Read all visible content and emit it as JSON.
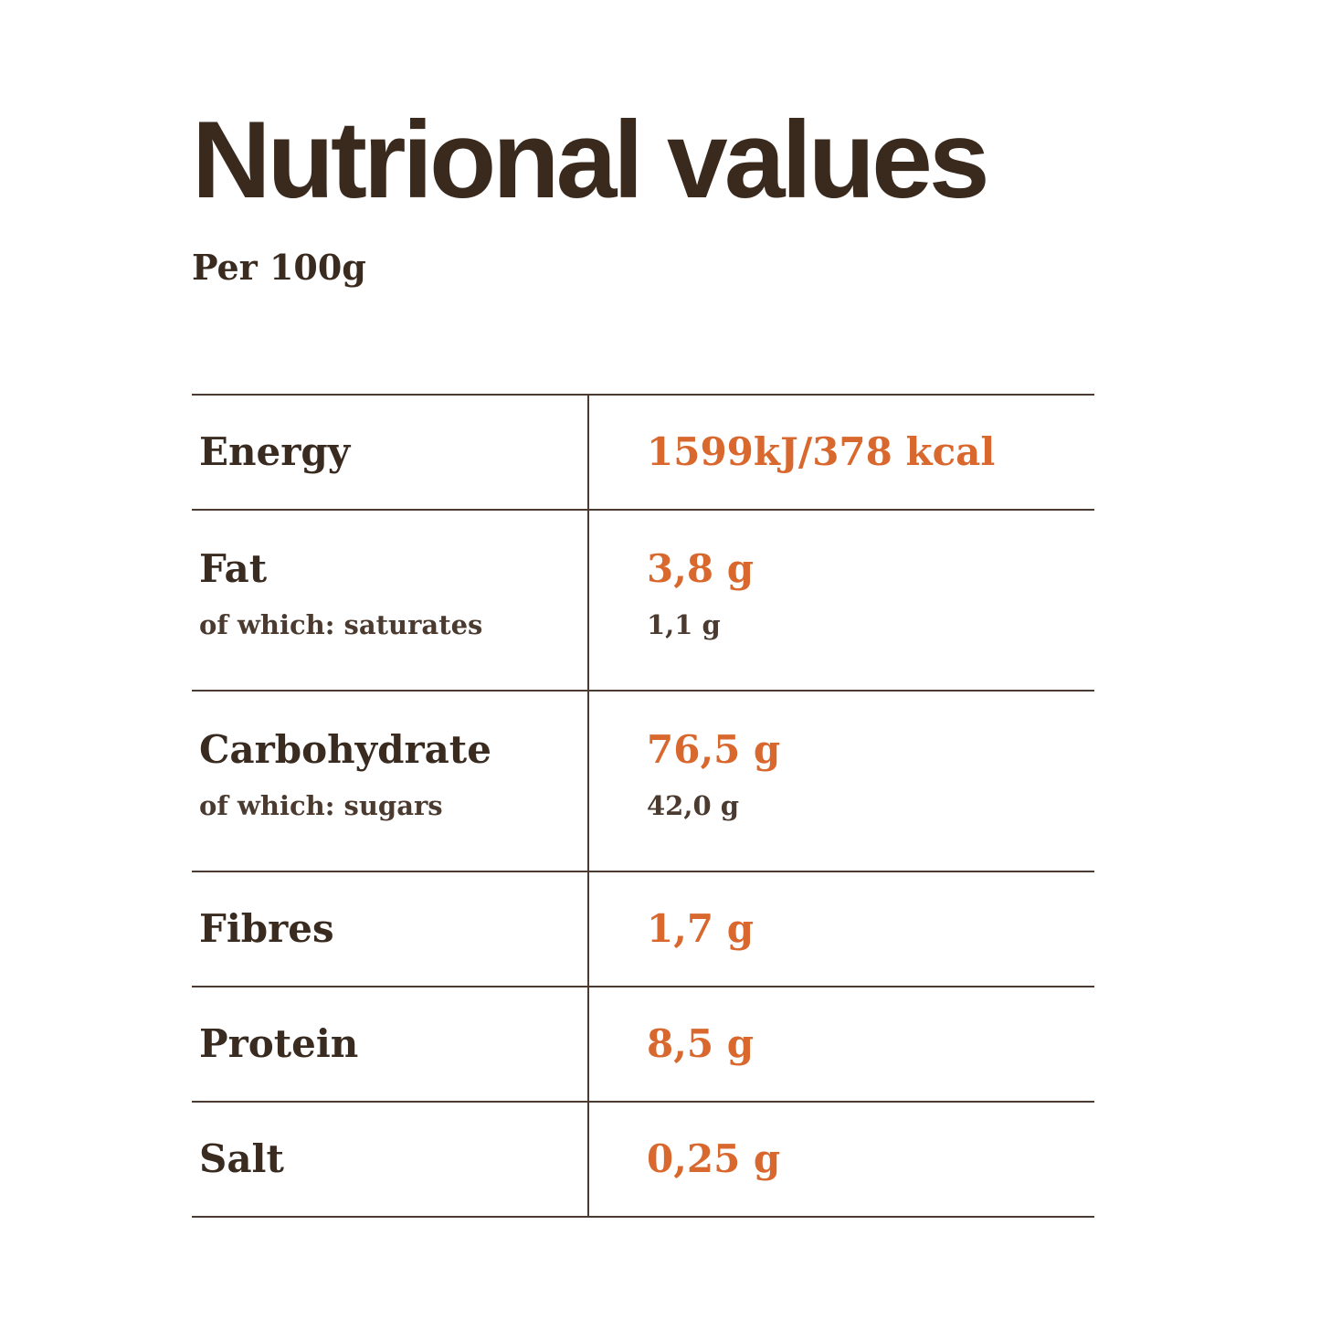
{
  "page": {
    "title": "Nutrional values",
    "subtitle": "Per 100g"
  },
  "colors": {
    "text_dark": "#3a2b20",
    "title_brown": "#3a2a1e",
    "accent_orange": "#d8682e",
    "table_line": "#4c3b31",
    "background": "#ffffff"
  },
  "table": {
    "rows": [
      {
        "label": "Energy",
        "value": "1599kJ/378 kcal"
      },
      {
        "label": "Fat",
        "value": "3,8 g",
        "sublabel": "of which: saturates",
        "subvalue": "1,1 g"
      },
      {
        "label": "Carbohydrate",
        "value": "76,5 g",
        "sublabel": "of which: sugars",
        "subvalue": "42,0 g"
      },
      {
        "label": "Fibres",
        "value": "1,7 g"
      },
      {
        "label": "Protein",
        "value": "8,5 g"
      },
      {
        "label": "Salt",
        "value": "0,25 g"
      }
    ]
  }
}
